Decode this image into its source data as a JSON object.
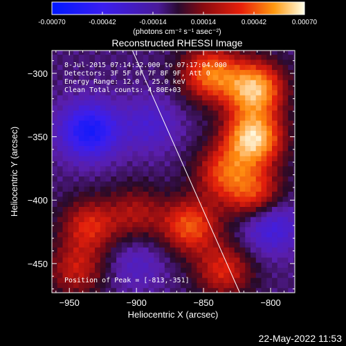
{
  "colorbar": {
    "tick_labels": [
      "-0.00070",
      "-0.00042",
      "-0.00014",
      "0.00014",
      "0.00042",
      "0.00070"
    ],
    "tick_values": [
      -0.0007,
      -0.00042,
      -0.00014,
      0.00014,
      0.00042,
      0.0007
    ],
    "range": [
      -0.0007,
      0.0007
    ],
    "units": "(photons cm⁻² s⁻¹ asec⁻²)"
  },
  "chart_data": {
    "type": "heatmap",
    "title": "Reconstructed RHESSI Image",
    "xlabel": "Heliocentric X (arcsec)",
    "ylabel": "Heliocentric Y (arcsec)",
    "xlim": [
      -963,
      -782
    ],
    "ylim": [
      -473,
      -282
    ],
    "x_ticks": [
      -950,
      -900,
      -850,
      -800
    ],
    "y_ticks": [
      -300,
      -350,
      -400,
      -450
    ],
    "x_tick_labels": [
      "−950",
      "−900",
      "−850",
      "−800"
    ],
    "y_tick_labels": [
      "−300",
      "−350",
      "−400",
      "−450"
    ],
    "annotations": [
      "8-Jul-2015 07:14:32.000 to 07:17:04.000",
      "Detectors: 3F 5F 6F 7F 8F 9F, Att 0",
      "Energy Range: 12.0 - 25.0 keV",
      "Clean    Total counts: 4.80E+03"
    ],
    "peak_label": "Position of Peak = [-813,-351]",
    "peak": [
      -813,
      -351
    ],
    "limb_line": [
      [
        -903,
        -282
      ],
      [
        -823,
        -473
      ]
    ],
    "bright_sources": [
      {
        "x": -845,
        "y": -300,
        "value": 0.0005
      },
      {
        "x": -812,
        "y": -312,
        "value": 0.00065
      },
      {
        "x": -813,
        "y": -351,
        "value": 0.0007
      },
      {
        "x": -812,
        "y": -395,
        "value": 0.0004
      },
      {
        "x": -835,
        "y": -378,
        "value": 0.00038
      },
      {
        "x": -860,
        "y": -420,
        "value": 0.00045
      },
      {
        "x": -935,
        "y": -420,
        "value": 0.00035
      },
      {
        "x": -945,
        "y": -455,
        "value": 0.0003
      },
      {
        "x": -900,
        "y": -410,
        "value": 0.00025
      },
      {
        "x": -835,
        "y": -455,
        "value": 0.00035
      }
    ],
    "dark_regions": [
      {
        "x": -935,
        "y": -345,
        "value": -0.0005
      },
      {
        "x": -890,
        "y": -340,
        "value": -0.0002
      },
      {
        "x": -800,
        "y": -420,
        "value": -0.0003
      },
      {
        "x": -900,
        "y": -450,
        "value": -0.00015
      }
    ]
  },
  "timestamp": "22-May-2022 11:53"
}
